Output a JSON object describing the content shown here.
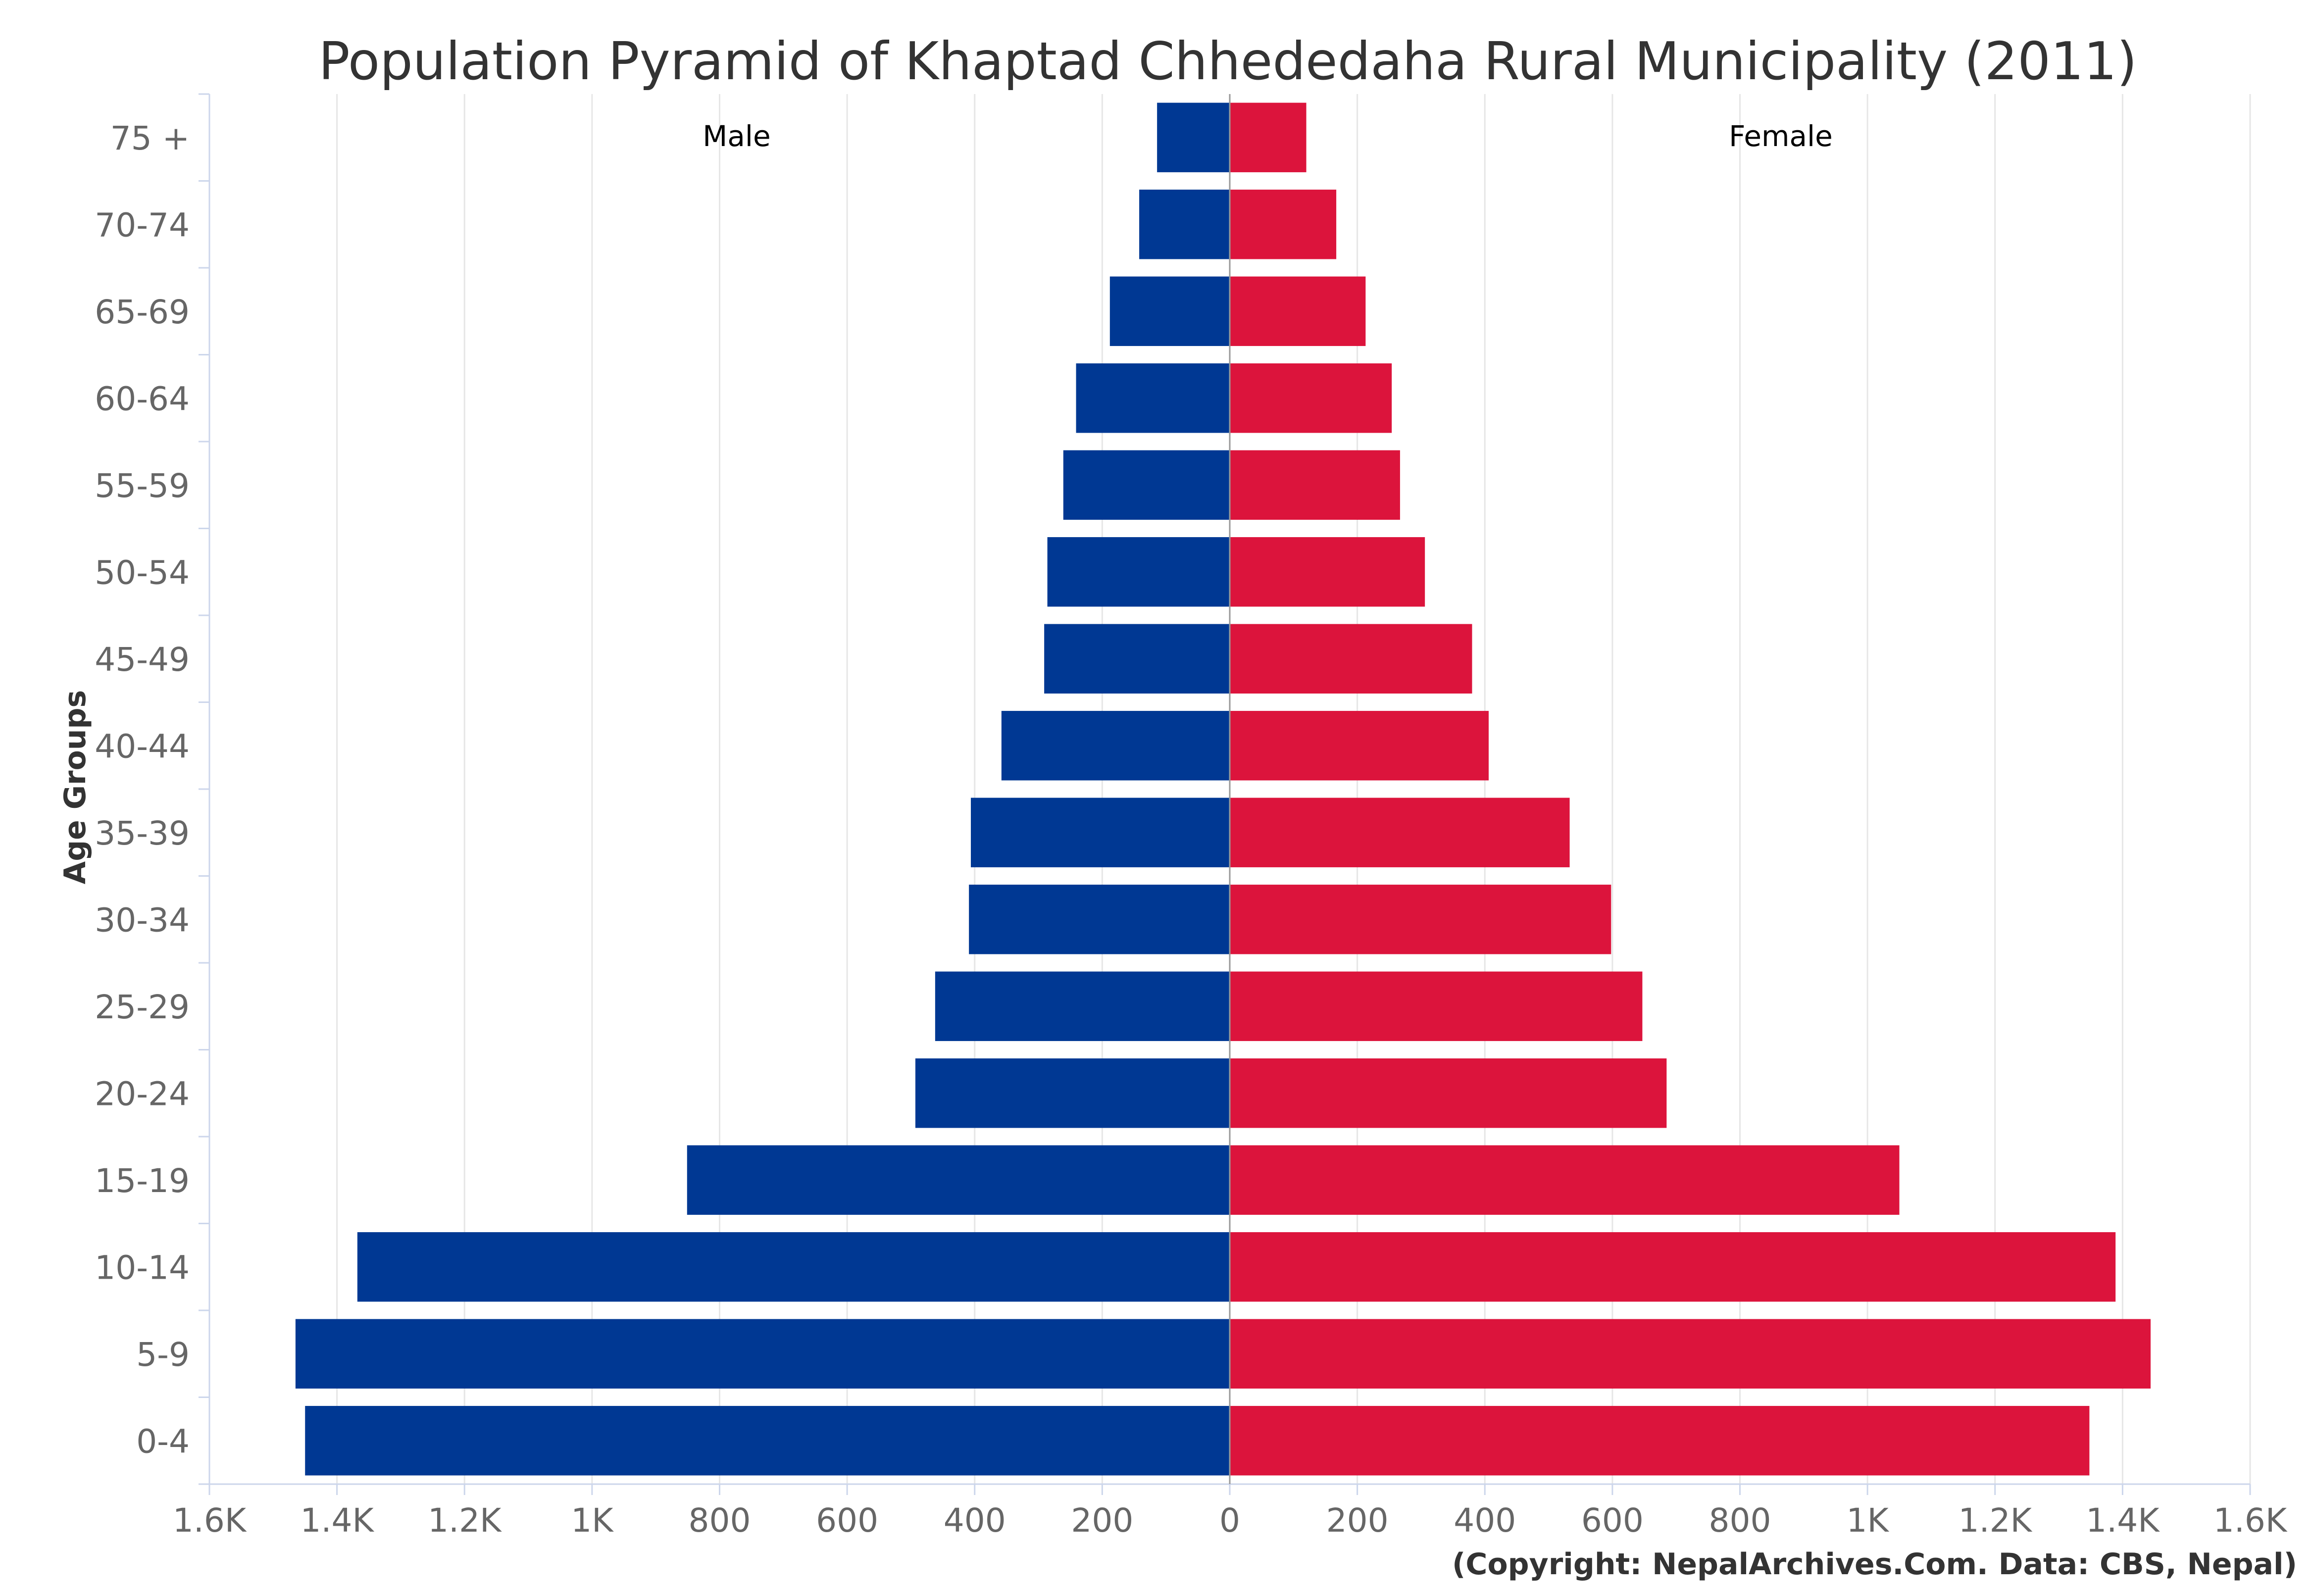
{
  "chart_data": {
    "type": "bar",
    "orientation": "horizontal",
    "title": "Population Pyramid of Khaptad Chhededaha Rural Municipality (2011)",
    "ylabel": "Age Groups",
    "xlabel": "",
    "categories": [
      "0-4",
      "5-9",
      "10-14",
      "15-19",
      "20-24",
      "25-29",
      "30-34",
      "35-39",
      "40-44",
      "45-49",
      "50-54",
      "55-59",
      "60-64",
      "65-69",
      "70-74",
      "75 +"
    ],
    "series": [
      {
        "name": "Male",
        "color": "#003893",
        "values": [
          1450,
          1465,
          1368,
          851,
          493,
          462,
          409,
          406,
          358,
          291,
          286,
          261,
          241,
          188,
          142,
          114
        ]
      },
      {
        "name": "Female",
        "color": "#DC143C",
        "values": [
          1348,
          1444,
          1389,
          1050,
          685,
          647,
          598,
          533,
          406,
          380,
          306,
          267,
          254,
          213,
          167,
          120
        ]
      }
    ],
    "xlim": [
      -1600,
      1600
    ],
    "xticks": [
      -1600,
      -1400,
      -1200,
      -1000,
      -800,
      -600,
      -400,
      -200,
      0,
      200,
      400,
      600,
      800,
      1000,
      1200,
      1400,
      1600
    ],
    "xtick_labels": [
      "1.6K",
      "1.4K",
      "1.2K",
      "1K",
      "800",
      "600",
      "400",
      "200",
      "0",
      "200",
      "400",
      "600",
      "800",
      "1K",
      "1.2K",
      "1.4K",
      "1.6K"
    ],
    "grid": true,
    "series_labels_inside_plot": true
  },
  "credit": "(Copyright: NepalArchives.Com. Data: CBS, Nepal)"
}
